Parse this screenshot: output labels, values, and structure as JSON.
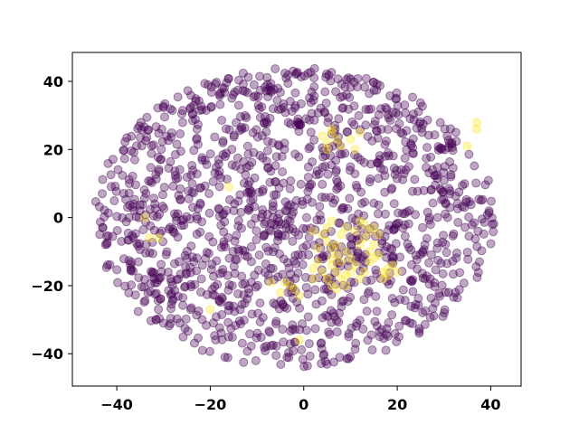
{
  "chart_data": {
    "type": "scatter",
    "title": "",
    "xlabel": "",
    "ylabel": "",
    "xlim": [
      -49.5,
      46.5
    ],
    "ylim": [
      -49.5,
      48.5
    ],
    "xticks": [
      -40,
      -20,
      0,
      20,
      40
    ],
    "yticks": [
      -40,
      -20,
      0,
      20,
      40
    ],
    "xtick_labels": [
      "−40",
      "−20",
      "0",
      "20",
      "40"
    ],
    "ytick_labels": [
      "−40",
      "−20",
      "0",
      "20",
      "40"
    ],
    "grid": false,
    "legend": "none",
    "point_opacity": 0.35,
    "colors": {
      "class_0": "#440154",
      "class_1": "#fde725"
    },
    "cloud": {
      "shape": "ellipse",
      "center": [
        -2,
        0
      ],
      "x_radius": 43,
      "y_radius": 44,
      "count_class_0": 1400,
      "seed": 12345
    },
    "series": [
      {
        "values": [
          [
            37,
            28
          ],
          [
            37,
            26
          ],
          [
            35,
            21
          ],
          [
            -34,
            0
          ],
          [
            -33,
            -6
          ],
          [
            -31,
            -6
          ],
          [
            -16,
            9
          ],
          [
            -20,
            -27
          ],
          [
            -3,
            -20
          ],
          [
            -2,
            -21
          ],
          [
            -5,
            -22
          ],
          [
            -4,
            -19
          ],
          [
            -1,
            -23
          ],
          [
            -7,
            -19
          ],
          [
            2,
            -18
          ],
          [
            -1,
            -36
          ],
          [
            6,
            25
          ],
          [
            7,
            23
          ],
          [
            5,
            22
          ],
          [
            8,
            21
          ],
          [
            5,
            20
          ],
          [
            4,
            24
          ],
          [
            6,
            26
          ],
          [
            11,
            20
          ],
          [
            12,
            25
          ],
          [
            10,
            23
          ],
          [
            4,
            -5
          ],
          [
            5,
            -7
          ],
          [
            6,
            -9
          ],
          [
            7,
            -11
          ],
          [
            8,
            -13
          ],
          [
            9,
            -10
          ],
          [
            10,
            -12
          ],
          [
            11,
            -14
          ],
          [
            12,
            -8
          ],
          [
            13,
            -6
          ],
          [
            14,
            -4
          ],
          [
            15,
            -3
          ],
          [
            13,
            -2
          ],
          [
            12,
            -1
          ],
          [
            6,
            -14
          ],
          [
            7,
            -16
          ],
          [
            5,
            -18
          ],
          [
            8,
            -18
          ],
          [
            9,
            -17
          ],
          [
            4,
            -16
          ],
          [
            6,
            -12
          ],
          [
            7,
            -8
          ],
          [
            3,
            -9
          ],
          [
            2,
            -4
          ],
          [
            5,
            -3
          ],
          [
            10,
            -16
          ],
          [
            11,
            -4
          ],
          [
            17,
            -16
          ],
          [
            18,
            -15
          ],
          [
            19,
            -14
          ],
          [
            20,
            -16
          ],
          [
            18,
            -17
          ],
          [
            14,
            -10
          ],
          [
            15,
            -12
          ],
          [
            16,
            -11
          ],
          [
            9,
            -20
          ],
          [
            7,
            -21
          ],
          [
            6,
            -20
          ],
          [
            12,
            -18
          ],
          [
            13,
            -16
          ],
          [
            17,
            -18
          ],
          [
            8,
            -5
          ],
          [
            9,
            -3
          ],
          [
            6,
            -1
          ],
          [
            3,
            -13
          ],
          [
            2,
            -15
          ],
          [
            14,
            -13
          ],
          [
            15,
            -8
          ],
          [
            16,
            -5
          ]
        ]
      }
    ]
  }
}
